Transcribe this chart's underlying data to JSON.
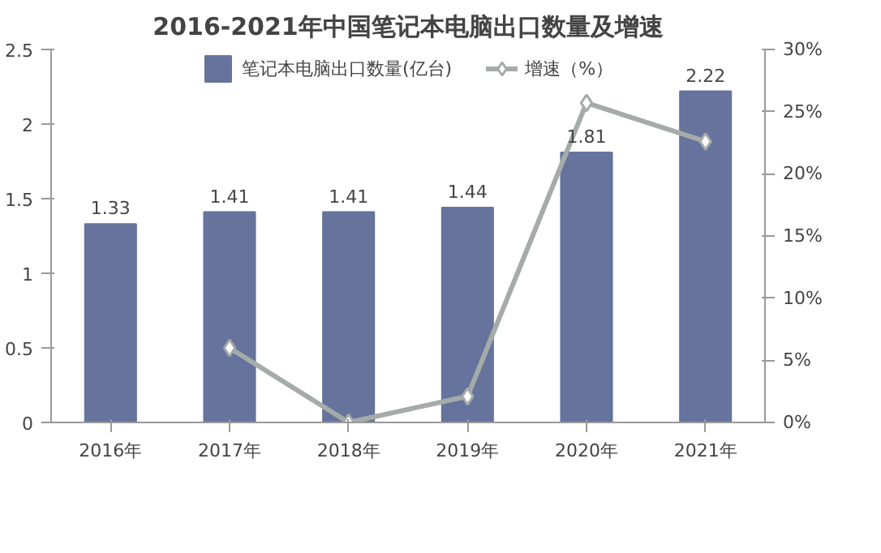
{
  "chart_data": {
    "type": "bar",
    "title": "2016-2021年中国笔记本电脑出口数量及增速",
    "categories": [
      "2016年",
      "2017年",
      "2018年",
      "2019年",
      "2020年",
      "2021年"
    ],
    "series": [
      {
        "name": "笔记本电脑出口数量(亿台)",
        "color": "#65739d",
        "values": [
          1.33,
          1.41,
          1.41,
          1.44,
          1.81,
          2.22
        ],
        "data_labels": true
      },
      {
        "name": "增速（%）",
        "type": "line",
        "axis": "y2",
        "color": "#a5aba7",
        "values": [
          null,
          6.0,
          0,
          2.1,
          25.7,
          22.6
        ],
        "marker": "diamond"
      }
    ],
    "ylim": [
      0,
      2.5
    ],
    "yticks": [
      0,
      0.5,
      1,
      1.5,
      2,
      2.5
    ],
    "y2lim": [
      0,
      30
    ],
    "y2ticks": [
      {
        "value": 0,
        "label": "0%"
      },
      {
        "value": 5,
        "label": "5%"
      },
      {
        "value": 10,
        "label": "10%"
      },
      {
        "value": 15,
        "label": "15%"
      },
      {
        "value": 20,
        "label": "20%"
      },
      {
        "value": 25,
        "label": "25%"
      },
      {
        "value": 30,
        "label": "30%"
      }
    ],
    "grid": false,
    "legend": "top"
  }
}
